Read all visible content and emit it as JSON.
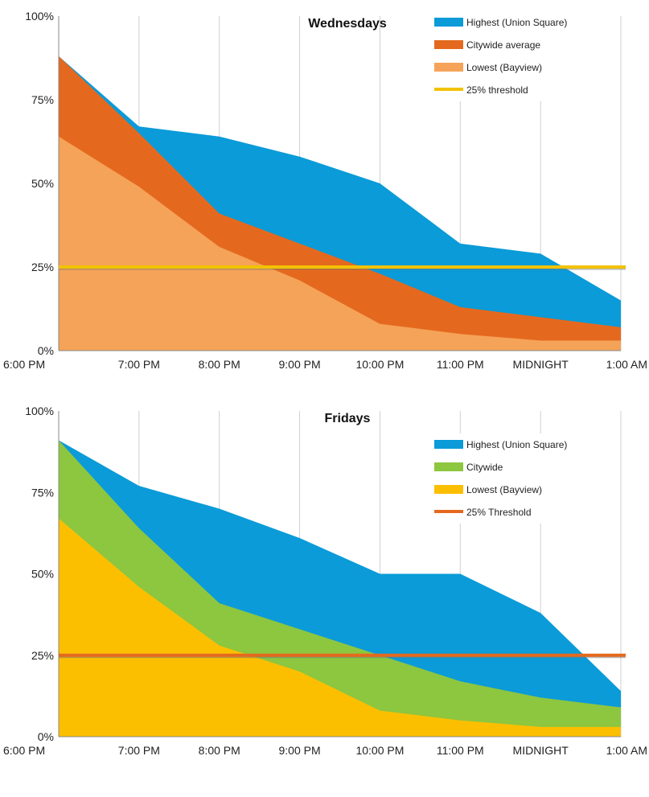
{
  "chart_data": [
    {
      "type": "area",
      "title": "Wednesdays",
      "x": [
        "6:00 PM",
        "7:00 PM",
        "8:00 PM",
        "9:00 PM",
        "10:00 PM",
        "11:00 PM",
        "MIDNIGHT",
        "1:00 AM"
      ],
      "ylim": [
        0,
        100
      ],
      "yticks": [
        "0%",
        "25%",
        "50%",
        "75%",
        "100%"
      ],
      "grid": "vertical",
      "legend": "top-right",
      "series": [
        {
          "name": "Highest (Union Square)",
          "values": [
            88,
            67,
            64,
            58,
            50,
            32,
            29,
            15
          ],
          "color": "#0A9BD8"
        },
        {
          "name": "Citywide average",
          "values": [
            88,
            65,
            41,
            32,
            23,
            13,
            10,
            7
          ],
          "color": "#E4691E"
        },
        {
          "name": "Lowest (Bayview)",
          "values": [
            64,
            49,
            31,
            21,
            8,
            5,
            3,
            3
          ],
          "color": "#F5A358"
        }
      ],
      "threshold": {
        "name": "25% threshold",
        "value": 25,
        "color": "#F2C200"
      }
    },
    {
      "type": "area",
      "title": "Fridays",
      "x": [
        "6:00 PM",
        "7:00 PM",
        "8:00 PM",
        "9:00 PM",
        "10:00 PM",
        "11:00 PM",
        "MIDNIGHT",
        "1:00 AM"
      ],
      "ylim": [
        0,
        100
      ],
      "yticks": [
        "0%",
        "25%",
        "50%",
        "75%",
        "100%"
      ],
      "grid": "vertical",
      "legend": "top-right",
      "series": [
        {
          "name": "Highest (Union Square)",
          "values": [
            91,
            77,
            70,
            61,
            50,
            50,
            38,
            14
          ],
          "color": "#0A9BD8"
        },
        {
          "name": "Citywide",
          "values": [
            91,
            64,
            41,
            33,
            25,
            17,
            12,
            9
          ],
          "color": "#8DC63F"
        },
        {
          "name": "Lowest (Bayview)",
          "values": [
            67,
            46,
            28,
            20,
            8,
            5,
            3,
            3
          ],
          "color": "#FCBF00"
        }
      ],
      "threshold": {
        "name": "25% Threshold",
        "value": 25,
        "color": "#E4691E"
      }
    }
  ]
}
